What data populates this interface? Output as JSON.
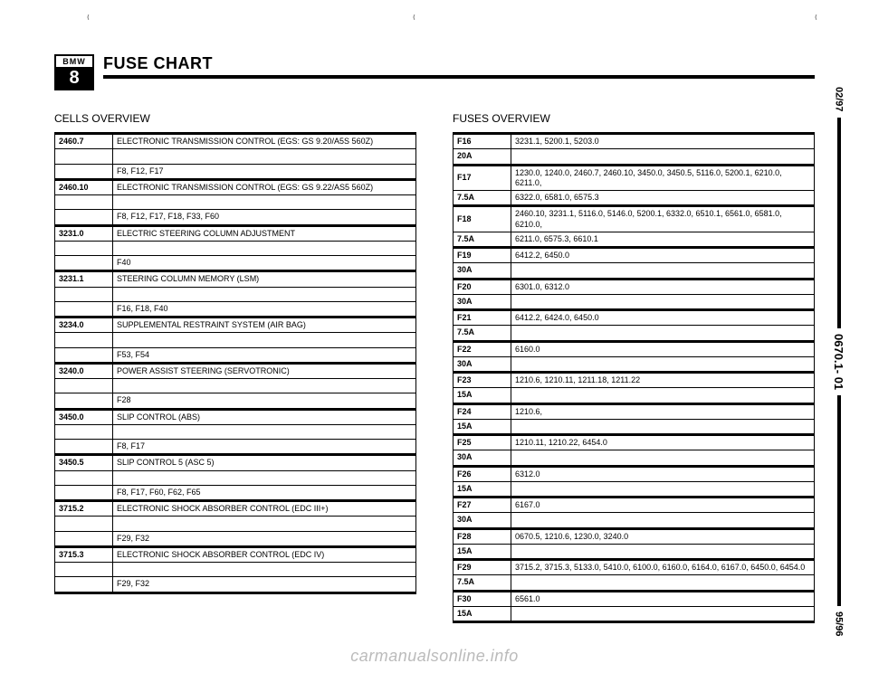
{
  "logo": {
    "brand": "BMW",
    "model": "8"
  },
  "title": "FUSE CHART",
  "side": {
    "top": "02/97",
    "mid": "0670.1- 01",
    "bot": "95/96"
  },
  "watermark": "carmanualsonline.info",
  "marks": {
    "m1": "₍",
    "m2": "₍",
    "m3": "₍"
  },
  "cells": {
    "heading": "CELLS OVERVIEW",
    "groups": [
      {
        "key": "2460.7",
        "lines": [
          "ELECTRONIC TRANSMISSION CONTROL (EGS: GS 9.20/A5S 560Z)",
          "",
          "F8, F12, F17"
        ]
      },
      {
        "key": "2460.10",
        "lines": [
          "ELECTRONIC TRANSMISSION CONTROL (EGS: GS 9.22/AS5 560Z)",
          "",
          "F8, F12, F17, F18, F33, F60"
        ]
      },
      {
        "key": "3231.0",
        "lines": [
          "ELECTRIC STEERING COLUMN ADJUSTMENT",
          "",
          "F40"
        ]
      },
      {
        "key": "3231.1",
        "lines": [
          "STEERING COLUMN MEMORY (LSM)",
          "",
          "F16, F18, F40"
        ]
      },
      {
        "key": "3234.0",
        "lines": [
          "SUPPLEMENTAL RESTRAINT SYSTEM (AIR BAG)",
          "",
          "F53, F54"
        ]
      },
      {
        "key": "3240.0",
        "lines": [
          "POWER ASSIST STEERING (SERVOTRONIC)",
          "",
          "F28"
        ]
      },
      {
        "key": "3450.0",
        "lines": [
          "SLIP CONTROL (ABS)",
          "",
          "F8, F17"
        ]
      },
      {
        "key": "3450.5",
        "lines": [
          "SLIP CONTROL 5 (ASC 5)",
          "",
          "F8, F17, F60, F62, F65"
        ]
      },
      {
        "key": "3715.2",
        "lines": [
          "ELECTRONIC SHOCK ABSORBER CONTROL (EDC III+)",
          "",
          "F29, F32"
        ]
      },
      {
        "key": "3715.3",
        "lines": [
          "ELECTRONIC SHOCK ABSORBER CONTROL (EDC IV)",
          "",
          "F29, F32"
        ]
      }
    ]
  },
  "fuses": {
    "heading": "FUSES OVERVIEW",
    "groups": [
      {
        "keys": [
          "F16",
          "20A"
        ],
        "lines": [
          "3231.1, 5200.1, 5203.0",
          ""
        ]
      },
      {
        "keys": [
          "F17",
          "7.5A"
        ],
        "lines": [
          "1230.0, 1240.0, 2460.7, 2460.10, 3450.0, 3450.5, 5116.0, 5200.1, 6210.0, 6211.0,",
          "6322.0, 6581.0, 6575.3"
        ]
      },
      {
        "keys": [
          "F18",
          "7.5A"
        ],
        "lines": [
          "2460.10, 3231.1, 5116.0, 5146.0, 5200.1, 6332.0, 6510.1, 6561.0, 6581.0, 6210.0,",
          "6211.0, 6575.3, 6610.1"
        ]
      },
      {
        "keys": [
          "F19",
          "30A"
        ],
        "lines": [
          "6412.2, 6450.0",
          ""
        ]
      },
      {
        "keys": [
          "F20",
          "30A"
        ],
        "lines": [
          "6301.0, 6312.0",
          ""
        ]
      },
      {
        "keys": [
          "F21",
          "7.5A"
        ],
        "lines": [
          "6412.2, 6424.0, 6450.0",
          ""
        ]
      },
      {
        "keys": [
          "F22",
          "30A"
        ],
        "lines": [
          "6160.0",
          ""
        ]
      },
      {
        "keys": [
          "F23",
          "15A"
        ],
        "lines": [
          "1210.6, 1210.11, 1211.18, 1211.22",
          ""
        ]
      },
      {
        "keys": [
          "F24",
          "15A"
        ],
        "lines": [
          "1210.6,",
          ""
        ]
      },
      {
        "keys": [
          "F25",
          "30A"
        ],
        "lines": [
          "1210.11, 1210.22, 6454.0",
          ""
        ]
      },
      {
        "keys": [
          "F26",
          "15A"
        ],
        "lines": [
          "6312.0",
          ""
        ]
      },
      {
        "keys": [
          "F27",
          "30A"
        ],
        "lines": [
          "6167.0",
          ""
        ]
      },
      {
        "keys": [
          "F28",
          "15A"
        ],
        "lines": [
          "0670.5, 1210.6, 1230.0, 3240.0",
          ""
        ]
      },
      {
        "keys": [
          "F29",
          "7.5A"
        ],
        "lines": [
          "3715.2, 3715.3, 5133.0, 5410.0, 6100.0, 6160.0, 6164.0, 6167.0, 6450.0, 6454.0",
          ""
        ]
      },
      {
        "keys": [
          "F30",
          "15A"
        ],
        "lines": [
          "6561.0",
          ""
        ]
      }
    ]
  }
}
